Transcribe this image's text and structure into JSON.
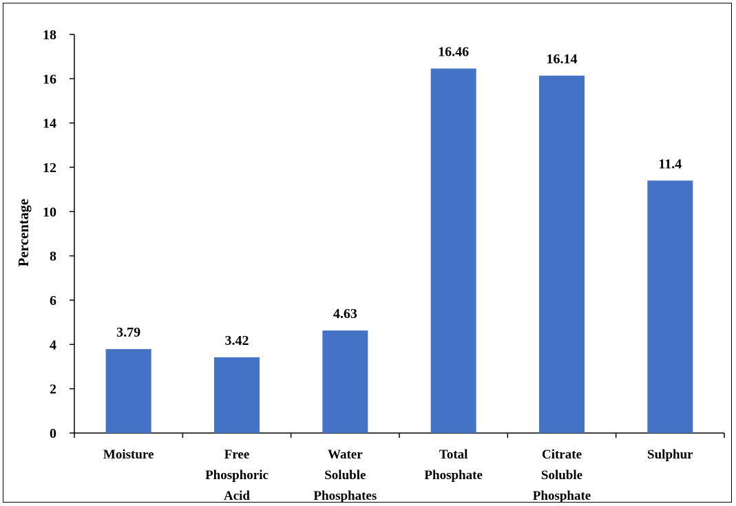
{
  "chart_data": {
    "type": "bar",
    "categories": [
      [
        "Moisture"
      ],
      [
        "Free",
        "Phosphoric",
        "Acid"
      ],
      [
        "Water",
        "Soluble",
        "Phosphates"
      ],
      [
        "Total",
        "Phosphate"
      ],
      [
        "Citrate",
        "Soluble",
        "Phosphate"
      ],
      [
        "Sulphur"
      ]
    ],
    "values": [
      3.79,
      3.42,
      4.63,
      16.46,
      16.14,
      11.4
    ],
    "data_labels": [
      "3.79",
      "3.42",
      "4.63",
      "16.46",
      "16.14",
      "11.4"
    ],
    "title": "",
    "xlabel": "",
    "ylabel": "Percentage",
    "ylim": [
      0,
      18
    ],
    "yticks": [
      0,
      2,
      4,
      6,
      8,
      10,
      12,
      14,
      16,
      18
    ],
    "grid": false,
    "legend": "none",
    "bar_color": "#4472C4"
  }
}
